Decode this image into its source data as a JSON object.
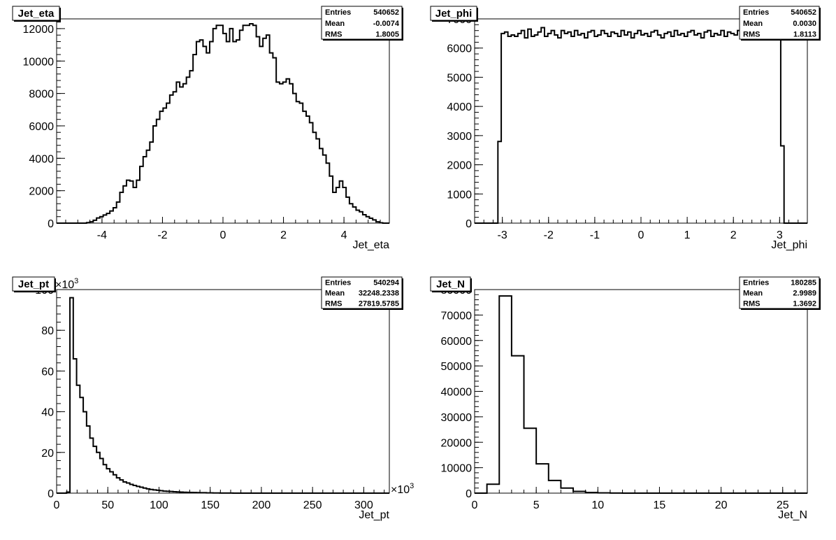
{
  "chart_data": [
    {
      "type": "histogram",
      "title": "Jet_eta",
      "xlabel": "Jet_eta",
      "ylabel": "",
      "xlim": [
        -5.5,
        5.5
      ],
      "ylim": [
        0,
        12600
      ],
      "xticks": [
        -4,
        -2,
        0,
        2,
        4
      ],
      "yticks": [
        0,
        2000,
        4000,
        6000,
        8000,
        10000,
        12000
      ],
      "stats": [
        {
          "label": "Entries",
          "value": "540652"
        },
        {
          "label": "Mean",
          "value": "-0.0074"
        },
        {
          "label": "RMS",
          "value": "1.8005"
        }
      ],
      "bin_low": -5.5,
      "bin_width": 0.11,
      "values": [
        0,
        0,
        0,
        0,
        0,
        0,
        0,
        0,
        0,
        30,
        80,
        180,
        320,
        400,
        500,
        600,
        750,
        950,
        1300,
        1900,
        2300,
        2650,
        2600,
        2200,
        2650,
        3500,
        4100,
        4500,
        5000,
        6000,
        6400,
        6900,
        7100,
        7400,
        7900,
        8100,
        8700,
        8400,
        8600,
        9000,
        9400,
        10400,
        11200,
        11300,
        10900,
        10500,
        11200,
        12000,
        12200,
        12200,
        11700,
        11200,
        12000,
        11200,
        11300,
        11900,
        12200,
        12200,
        12300,
        12200,
        11500,
        10900,
        11400,
        11600,
        10500,
        10200,
        8700,
        8600,
        8700,
        8900,
        8600,
        8000,
        7500,
        7400,
        6900,
        6600,
        6200,
        5600,
        5200,
        4600,
        4200,
        3700,
        2900,
        1900,
        2200,
        2600,
        2200,
        1600,
        1200,
        1000,
        800,
        700,
        520,
        400,
        300,
        200,
        80,
        20,
        0,
        0
      ]
    },
    {
      "type": "histogram",
      "title": "Jet_phi",
      "xlabel": "Jet_phi",
      "ylabel": "",
      "xlim": [
        -3.6,
        3.6
      ],
      "ylim": [
        0,
        7000
      ],
      "xticks": [
        -3,
        -2,
        -1,
        0,
        1,
        2,
        3
      ],
      "yticks": [
        0,
        1000,
        2000,
        3000,
        4000,
        5000,
        6000,
        7000
      ],
      "stats": [
        {
          "label": "Entries",
          "value": "540652"
        },
        {
          "label": "Mean",
          "value": "0.0030"
        },
        {
          "label": "RMS",
          "value": "1.8113"
        }
      ],
      "bin_low": -3.6,
      "bin_width": 0.072,
      "values": [
        0,
        0,
        0,
        0,
        0,
        0,
        0,
        2800,
        6500,
        6550,
        6400,
        6450,
        6400,
        6500,
        6600,
        6350,
        6650,
        6400,
        6450,
        6550,
        6700,
        6400,
        6500,
        6600,
        6450,
        6350,
        6600,
        6500,
        6550,
        6400,
        6600,
        6450,
        6500,
        6350,
        6550,
        6600,
        6400,
        6450,
        6600,
        6500,
        6400,
        6550,
        6500,
        6400,
        6600,
        6450,
        6550,
        6350,
        6500,
        6600,
        6450,
        6500,
        6400,
        6550,
        6600,
        6450,
        6350,
        6500,
        6550,
        6400,
        6600,
        6450,
        6500,
        6400,
        6550,
        6600,
        6450,
        6500,
        6350,
        6550,
        6600,
        6400,
        6500,
        6450,
        6600,
        6400,
        6550,
        6500,
        6450,
        6600,
        6400,
        6500,
        6550,
        6450,
        6350,
        6600,
        6500,
        6450,
        6550,
        6400,
        6500,
        6400,
        2650,
        0,
        0,
        0,
        0,
        0,
        0,
        0
      ]
    },
    {
      "type": "histogram",
      "title": "Jet_pt",
      "xlabel": "Jet_pt",
      "ylabel": "",
      "x_multiplier": "×10",
      "x_multiplier_exp": "3",
      "y_multiplier": "×10",
      "y_multiplier_exp": "3",
      "xlim": [
        0,
        325
      ],
      "ylim": [
        0,
        100
      ],
      "xticks": [
        0,
        50,
        100,
        150,
        200,
        250,
        300
      ],
      "yticks": [
        0,
        20,
        40,
        60,
        80,
        100
      ],
      "stats": [
        {
          "label": "Entries",
          "value": "540294"
        },
        {
          "label": "Mean",
          "value": "32248.2338"
        },
        {
          "label": "RMS",
          "value": "27819.5785"
        }
      ],
      "bin_low": 0,
      "bin_width": 3.25,
      "values": [
        0,
        0,
        0,
        0.5,
        96,
        66,
        53,
        47,
        40,
        33,
        27,
        23,
        20,
        17,
        14,
        12,
        10.5,
        9,
        7.5,
        6.5,
        5.5,
        5,
        4.3,
        3.8,
        3.3,
        2.9,
        2.5,
        2.1,
        1.8,
        1.6,
        1.4,
        1.2,
        1.0,
        0.9,
        0.8,
        0.7,
        0.6,
        0.5,
        0.45,
        0.4,
        0.35,
        0.3,
        0.25,
        0.2,
        0.2,
        0.15,
        0.12,
        0.1,
        0.08,
        0.06,
        0.05,
        0.04,
        0.03,
        0.02,
        0.02,
        0.01,
        0.01,
        0.01,
        0,
        0,
        0,
        0,
        0,
        0,
        0,
        0,
        0,
        0,
        0,
        0,
        0,
        0,
        0,
        0,
        0,
        0,
        0,
        0,
        0,
        0,
        0,
        0,
        0,
        0,
        0,
        0,
        0,
        0,
        0,
        0,
        0,
        0,
        0,
        0,
        0,
        0,
        0,
        0,
        0,
        0
      ]
    },
    {
      "type": "histogram",
      "title": "Jet_N",
      "xlabel": "Jet_N",
      "ylabel": "",
      "xlim": [
        0,
        27
      ],
      "ylim": [
        0,
        80000
      ],
      "xticks": [
        0,
        5,
        10,
        15,
        20,
        25
      ],
      "yticks": [
        0,
        10000,
        20000,
        30000,
        40000,
        50000,
        60000,
        70000,
        80000
      ],
      "stats": [
        {
          "label": "Entries",
          "value": "180285"
        },
        {
          "label": "Mean",
          "value": "2.9989"
        },
        {
          "label": "RMS",
          "value": "1.3692"
        }
      ],
      "bin_low": 0,
      "bin_width": 1,
      "values": [
        0,
        3500,
        77500,
        54000,
        25500,
        11500,
        5000,
        2000,
        700,
        250,
        100,
        40,
        15,
        5,
        0,
        0,
        0,
        0,
        0,
        0,
        0,
        0,
        0,
        0,
        0,
        0,
        0
      ]
    }
  ]
}
